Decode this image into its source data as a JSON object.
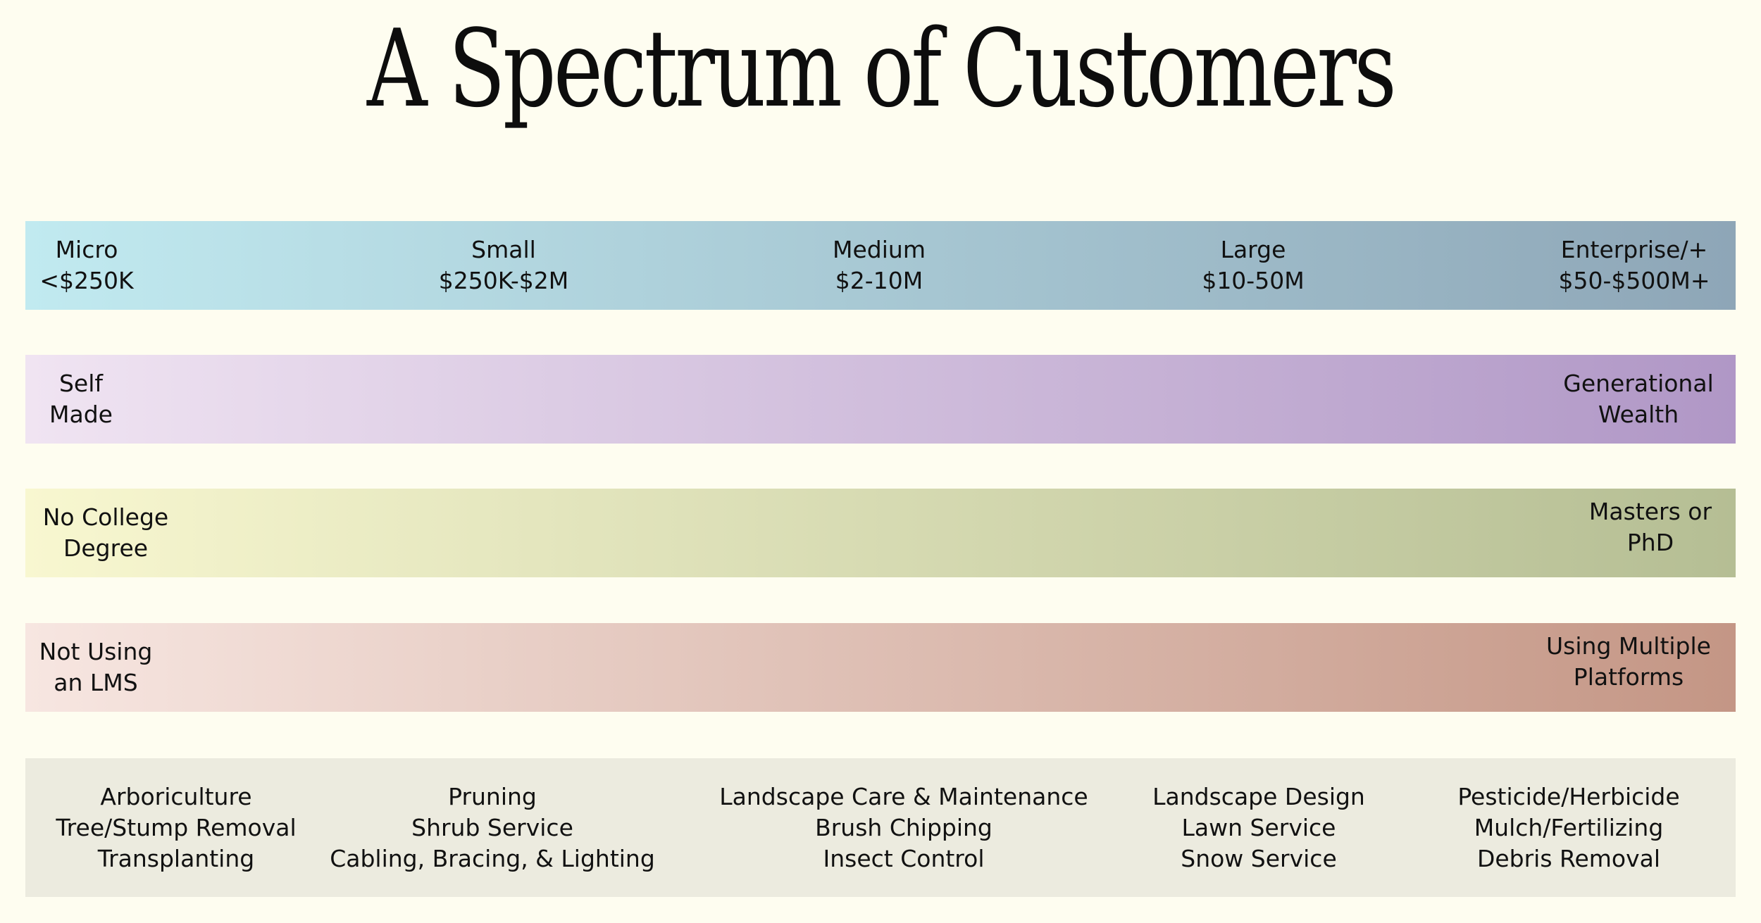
{
  "title": "A Spectrum of Customers",
  "colors": {
    "background": "#fefdf0",
    "size_band": [
      "#c1eaf0",
      "#8ea6b7"
    ],
    "wealth_band": [
      "#f0e4f2",
      "#b097c6"
    ],
    "education_band": [
      "#f8f7d0",
      "#b5be94"
    ],
    "lms_band": [
      "#f7e6e1",
      "#c49685"
    ],
    "services_band": "#ecebdf"
  },
  "size_spectrum": [
    {
      "name": "Micro",
      "range": "<$250K"
    },
    {
      "name": "Small",
      "range": "$250K-$2M"
    },
    {
      "name": "Medium",
      "range": "$2-10M"
    },
    {
      "name": "Large",
      "range": "$10-50M"
    },
    {
      "name": "Enterprise/+",
      "range": "$50-$500M+"
    }
  ],
  "wealth_spectrum": {
    "left": [
      "Self",
      "Made"
    ],
    "right": [
      "Generational",
      "Wealth"
    ]
  },
  "education_spectrum": {
    "left": [
      "No College",
      "Degree"
    ],
    "right": [
      "Masters or",
      "PhD"
    ]
  },
  "lms_spectrum": {
    "left": [
      "Not Using",
      "an LMS"
    ],
    "right": [
      "Using Multiple",
      "Platforms"
    ]
  },
  "services": [
    [
      "Arboriculture",
      "Tree/Stump Removal",
      "Transplanting"
    ],
    [
      "Pruning",
      "Shrub Service",
      "Cabling, Bracing, & Lighting"
    ],
    [
      "Landscape Care & Maintenance",
      "Brush Chipping",
      "Insect Control"
    ],
    [
      "Landscape Design",
      "Lawn Service",
      "Snow Service"
    ],
    [
      "Pesticide/Herbicide",
      "Mulch/Fertilizing",
      "Debris Removal"
    ]
  ]
}
